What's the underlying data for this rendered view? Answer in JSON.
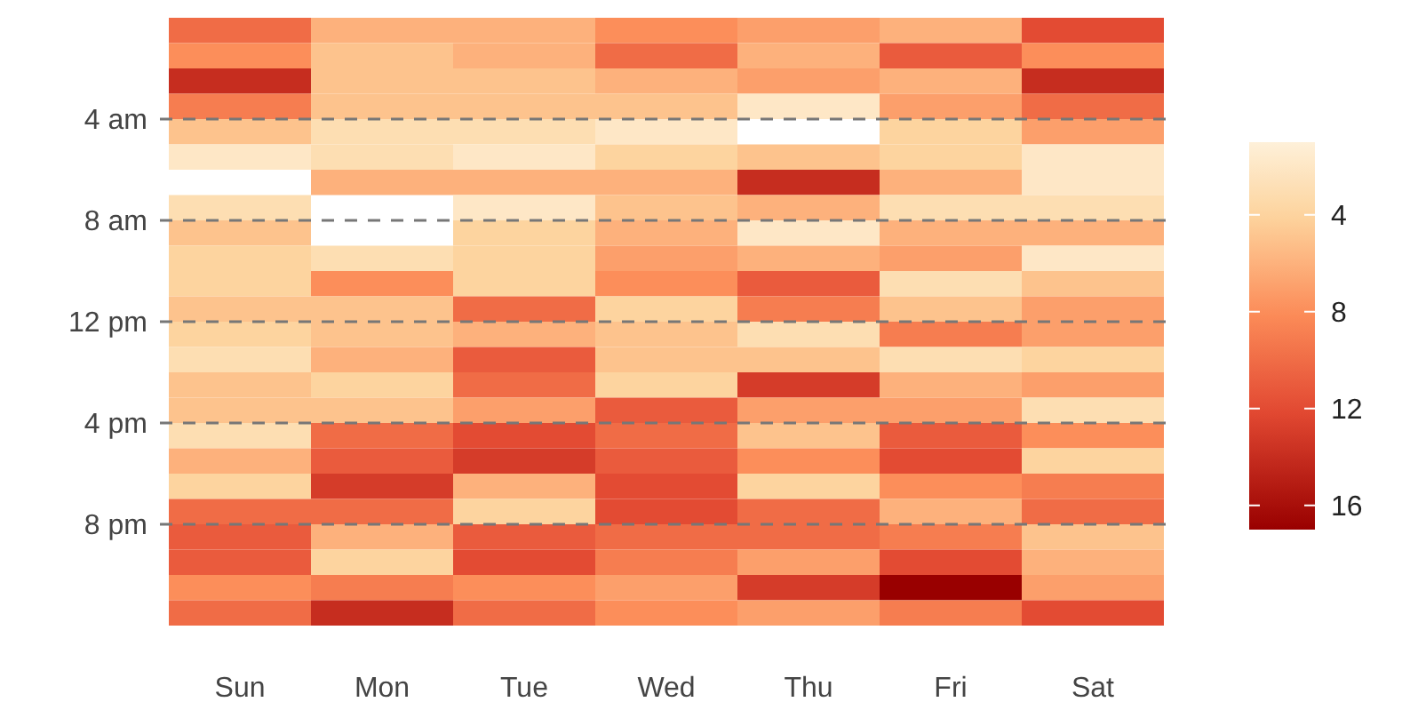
{
  "chart_data": {
    "type": "heatmap",
    "categories": [
      "Sun",
      "Mon",
      "Tue",
      "Wed",
      "Thu",
      "Fri",
      "Sat"
    ],
    "y_categories": [
      null,
      null,
      null,
      null,
      "4 am",
      null,
      null,
      null,
      "8 am",
      null,
      null,
      null,
      "12 pm",
      null,
      null,
      null,
      "4 pm",
      null,
      null,
      null,
      "8 pm",
      null,
      null,
      null
    ],
    "grid": "y",
    "line_style": "dashed",
    "clim": [
      1,
      17
    ],
    "cticks": [
      4,
      8,
      12,
      16
    ],
    "cells": [
      [
        10,
        6,
        6,
        8,
        7,
        6,
        12
      ],
      [
        8,
        5,
        6,
        10,
        6,
        11,
        8
      ],
      [
        14,
        5,
        5,
        6,
        7,
        6,
        14
      ],
      [
        9,
        5,
        5,
        5,
        2,
        7,
        10
      ],
      [
        5,
        3,
        3,
        2,
        null,
        4,
        7
      ],
      [
        2,
        3,
        2,
        4,
        5,
        4,
        2
      ],
      [
        null,
        6,
        6,
        6,
        14,
        6,
        2
      ],
      [
        3,
        null,
        2,
        5,
        6,
        3,
        3
      ],
      [
        5,
        null,
        4,
        6,
        2,
        6,
        6
      ],
      [
        4,
        3,
        4,
        7,
        6,
        7,
        2
      ],
      [
        4,
        8,
        4,
        8,
        11,
        3,
        5
      ],
      [
        5,
        5,
        10,
        4,
        9,
        5,
        7
      ],
      [
        4,
        5,
        6,
        5,
        3,
        9,
        7
      ],
      [
        3,
        6,
        11,
        5,
        5,
        3,
        4
      ],
      [
        5,
        4,
        10,
        4,
        13,
        6,
        7
      ],
      [
        5,
        5,
        7,
        11,
        7,
        7,
        3
      ],
      [
        3,
        10,
        12,
        10,
        5,
        11,
        8
      ],
      [
        6,
        11,
        13,
        11,
        8,
        12,
        4
      ],
      [
        4,
        13,
        6,
        12,
        4,
        8,
        9
      ],
      [
        10,
        10,
        4,
        12,
        10,
        6,
        10
      ],
      [
        11,
        6,
        11,
        10,
        10,
        9,
        5
      ],
      [
        11,
        4,
        12,
        9,
        7,
        12,
        6
      ],
      [
        8,
        9,
        8,
        7,
        13,
        17,
        7
      ],
      [
        10,
        14,
        10,
        8,
        7,
        9,
        12
      ]
    ]
  }
}
